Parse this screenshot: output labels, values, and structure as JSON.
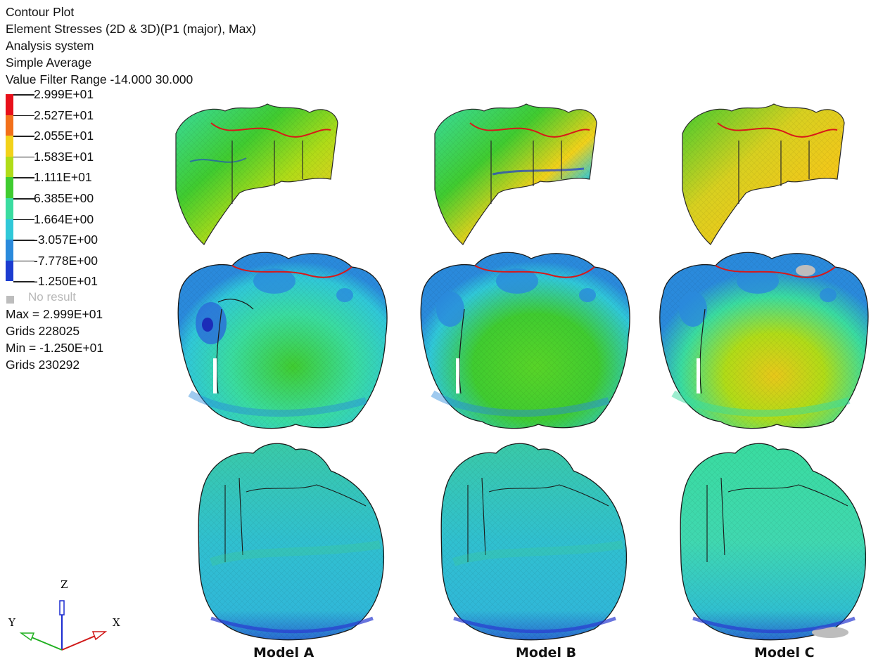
{
  "header": {
    "line1": "Contour Plot",
    "line2": "Element Stresses (2D & 3D)(P1 (major), Max)",
    "line3": "Analysis system",
    "line4": "Simple Average",
    "line5": "Value Filter Range -14.000 30.000"
  },
  "legend": {
    "ticks": [
      "2.999E+01",
      "2.527E+01",
      "2.055E+01",
      "1.583E+01",
      "1.111E+01",
      "6.385E+00",
      "1.664E+00",
      "-3.057E+00",
      "-7.778E+00",
      "-1.250E+01"
    ],
    "colors": [
      "#e8101a",
      "#f2701a",
      "#f2d21a",
      "#b0dc18",
      "#40cc30",
      "#3adca0",
      "#30c8d8",
      "#2a8adc",
      "#1c3cd0"
    ],
    "no_result": "No result",
    "no_result_color": "#bdbdbd"
  },
  "stats": {
    "max": "Max = 2.999E+01",
    "max_grid": "Grids 228025",
    "min": "Min = -1.250E+01",
    "min_grid": "Grids 230292"
  },
  "axes": {
    "z": "Z",
    "y": "Y",
    "x": "X"
  },
  "models": [
    "Model A",
    "Model B",
    "Model C"
  ]
}
